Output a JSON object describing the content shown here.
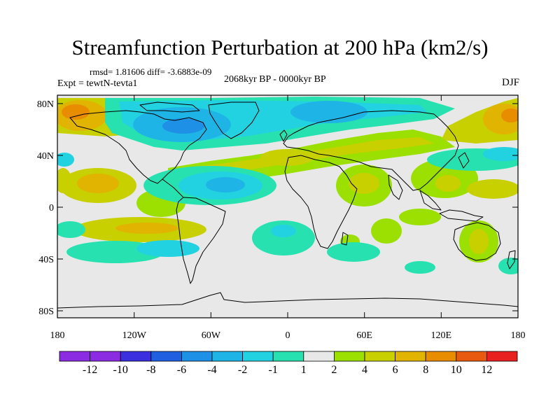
{
  "title": "Streamfunction Perturbation at 200 hPa (km2/s)",
  "stats_text": "rmsd= 1.81606 diff= -3.6883e-09",
  "experiment_text": "Expt = tewtN-tevta1",
  "period_text": "2068kyr BP - 0000kyr BP",
  "season_text": "DJF",
  "map": {
    "lat_ticks": [
      "80N",
      "40N",
      "0",
      "40S",
      "80S"
    ],
    "lon_ticks": [
      "180",
      "120W",
      "60W",
      "0",
      "60E",
      "120E",
      "180"
    ],
    "background_color": "#e8e8e8",
    "coastline_color": "#000000"
  },
  "colorbar": {
    "labels": [
      "-12",
      "-10",
      "-8",
      "-6",
      "-4",
      "-2",
      "-1",
      "1",
      "2",
      "4",
      "6",
      "8",
      "10",
      "12"
    ],
    "colors": [
      "#8b2be2",
      "#3b2fe0",
      "#1f5fe0",
      "#1e90e6",
      "#1fb4e6",
      "#22d2e0",
      "#27e2b0",
      "#e8e8e8",
      "#9be000",
      "#c8d000",
      "#e0b400",
      "#e88c00",
      "#e85a10",
      "#e82020"
    ]
  }
}
